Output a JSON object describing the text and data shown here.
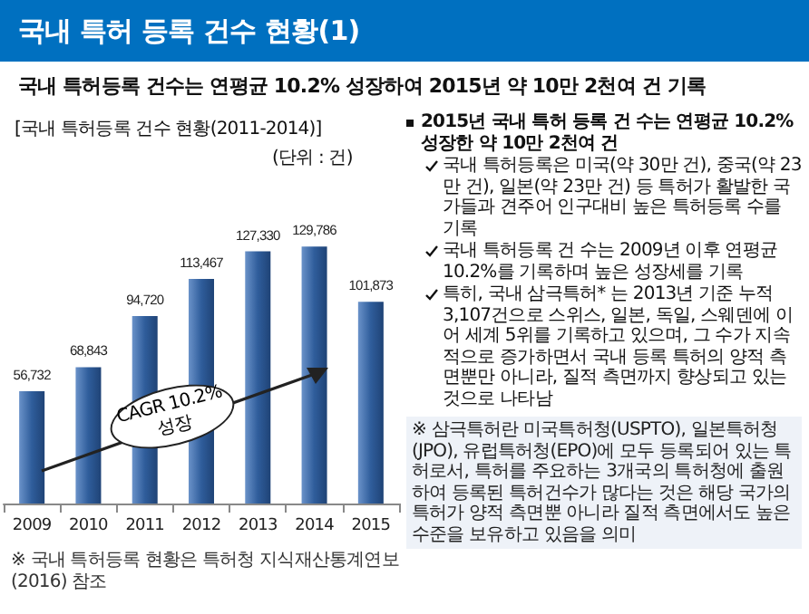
{
  "chart_data": {
    "type": "bar",
    "title": "국내 특허 등록 건수 현황(1)",
    "subtitle": "국내 특허등록 건수는 연평균 10.2% 성장하여 2015년 약 10만 2천여 건 기록",
    "categories": [
      "2009",
      "2010",
      "2011",
      "2012",
      "2013",
      "2014",
      "2015"
    ],
    "values": [
      56732,
      68843,
      94720,
      113467,
      127330,
      129786,
      101873
    ],
    "color": "#2f5d9b",
    "value_labels": [
      "56,732",
      "68,843",
      "94,720",
      "113,467",
      "127,330",
      "129,786",
      "101,873"
    ],
    "annotations": [
      "[국내 특허등록 건수 현황(2011-2014)]",
      "(단위 : 건)",
      "CAGR 10.2%성장",
      "2015년 국내 특허 등록 건 수는 연평균 10.2% 성장한 약 10만 2천여 건",
      "국내 특허등록은 미국(약 30만 건), 중국(약 23만 건), 일본(약 23만 건) 등 특허가 활발한 국가들과 견주어 인구대비 높은 특허등록 수를 기록",
      "국내 특허등록 건 수는 2009년 이후 연평균 10.2%를 기록하며 높은 성장세를 기록",
      "특히, 국내 삼극특허* 는 2013년 기준 누적 3,107건으로 스위스, 일본, 독일, 스웨덴에 이어 세계 5위를 기록하고 있으며, 그 수가 지속적으로 증가하면서 국내 등록 특허의 양적 측면뿐만 아니라, 질적 측면까지 향상되고 있는 것으로 나타남",
      "※ 삼극특허란 미국특허청(USPTO), 일본특허청(JPO), 유럽특허청(EPO)에 모두 등록되어 있는 특허로서, 특허를 주요하는 3개국의 특허청에 출원하여 등록된 특허건수가 많다는 것은 해당 국가의 특허가 양적 측면뿐 아니라 질적 측면에서도 높은 수준을 보유하고 있음을 의미",
      "※ 국내 특허등록 현황은 특허청 지식재산통계연보(2016) 참조"
    ]
  }
}
